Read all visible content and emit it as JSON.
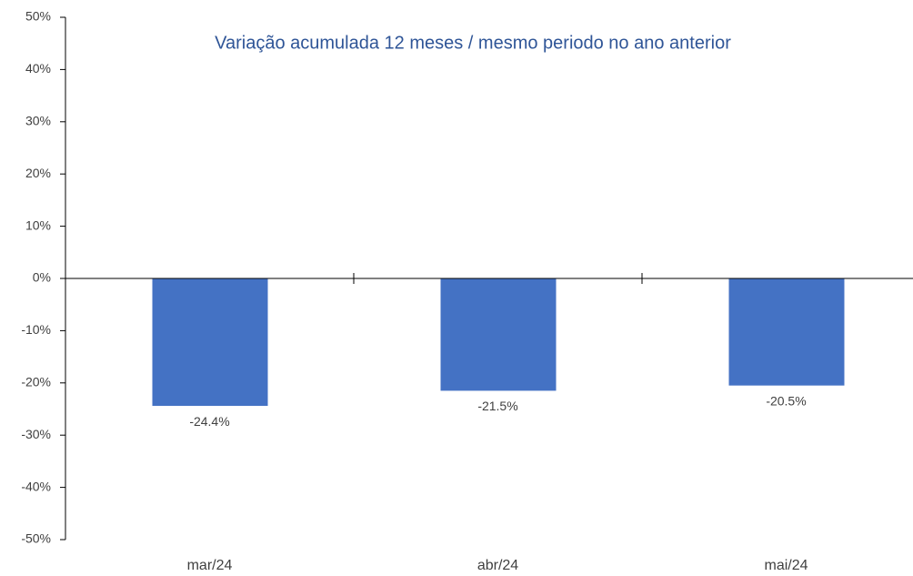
{
  "chart_data": {
    "type": "bar",
    "title": "Variação acumulada 12 meses / mesmo periodo no ano anterior",
    "categories": [
      "mar/24",
      "abr/24",
      "mai/24"
    ],
    "values": [
      -24.4,
      -21.5,
      -20.5
    ],
    "value_labels": [
      "-24.4%",
      "-21.5%",
      "-20.5%"
    ],
    "color": "#4472c4",
    "ylim": [
      -50,
      50
    ],
    "yticks": [
      {
        "value": -50,
        "label": "-50%"
      },
      {
        "value": -40,
        "label": "-40%"
      },
      {
        "value": -30,
        "label": "-30%"
      },
      {
        "value": -20,
        "label": "-20%"
      },
      {
        "value": -10,
        "label": "-10%"
      },
      {
        "value": 0,
        "label": "0%"
      },
      {
        "value": 10,
        "label": "10%"
      },
      {
        "value": 20,
        "label": "20%"
      },
      {
        "value": 30,
        "label": "30%"
      },
      {
        "value": 40,
        "label": "40%"
      },
      {
        "value": 50,
        "label": "50%"
      }
    ],
    "grid": false
  }
}
